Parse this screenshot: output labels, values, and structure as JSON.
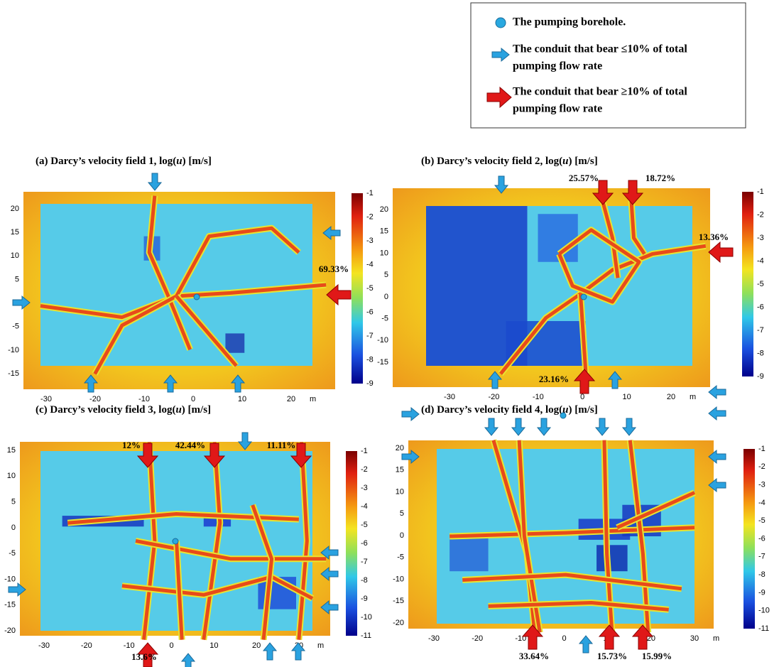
{
  "legend": {
    "items": [
      {
        "lines": [
          "The pumping borehole."
        ]
      },
      {
        "lines": [
          "The conduit that bear ≤10% of total",
          "pumping flow rate"
        ]
      },
      {
        "lines": [
          "The conduit that bear ≥10% of total",
          "pumping flow rate"
        ]
      }
    ]
  },
  "panels": [
    {
      "title": [
        "(a) Darcy’s velocity field 1, log(",
        "u",
        ") [m/s]"
      ],
      "yticks": [
        20,
        15,
        10,
        5,
        0,
        -5,
        -10,
        -15
      ],
      "xticks": [
        -30,
        -20,
        -10,
        0,
        10,
        20
      ],
      "unit": "m",
      "cticks": [
        -1,
        -2,
        -3,
        -4,
        -5,
        -6,
        -7,
        -8,
        -9
      ],
      "annotations": [
        "69.33%"
      ]
    },
    {
      "title": [
        "(b) Darcy’s velocity field 2, log(",
        "u",
        ") [m/s]"
      ],
      "yticks": [
        20,
        15,
        10,
        5,
        0,
        -5,
        -10,
        -15
      ],
      "xticks": [
        -30,
        -20,
        -10,
        0,
        10,
        20
      ],
      "unit": "m",
      "cticks": [
        -1,
        -2,
        -3,
        -4,
        -5,
        -6,
        -7,
        -8,
        -9
      ],
      "annotations": [
        "25.57%",
        "18.72%",
        "13.36%",
        "23.16%"
      ]
    },
    {
      "title": [
        "(c) Darcy’s velocity field 3, log(",
        "u",
        ") [m/s]"
      ],
      "yticks": [
        15,
        10,
        5,
        0,
        -5,
        -10,
        -15,
        -20
      ],
      "xticks": [
        -30,
        -20,
        -10,
        0,
        10,
        20,
        30
      ],
      "unit": "m",
      "cticks": [
        -1,
        -2,
        -3,
        -4,
        -5,
        -6,
        -7,
        -8,
        -9,
        -10,
        -11
      ],
      "annotations": [
        "12%",
        "42.44%",
        "11.11%",
        "13.6%"
      ]
    },
    {
      "title": [
        "(d) Darcy’s velocity field 4, log(",
        "u",
        ") [m/s]"
      ],
      "yticks": [
        20,
        15,
        10,
        5,
        0,
        -5,
        -10,
        -15,
        -20
      ],
      "xticks": [
        -30,
        -20,
        -10,
        0,
        10,
        20,
        30
      ],
      "unit": "m",
      "cticks": [
        -1,
        -2,
        -3,
        -4,
        -5,
        -6,
        -7,
        -8,
        -9,
        -10,
        -11
      ],
      "annotations": [
        "33.64%",
        "15.73%",
        "15.99%"
      ]
    }
  ]
}
